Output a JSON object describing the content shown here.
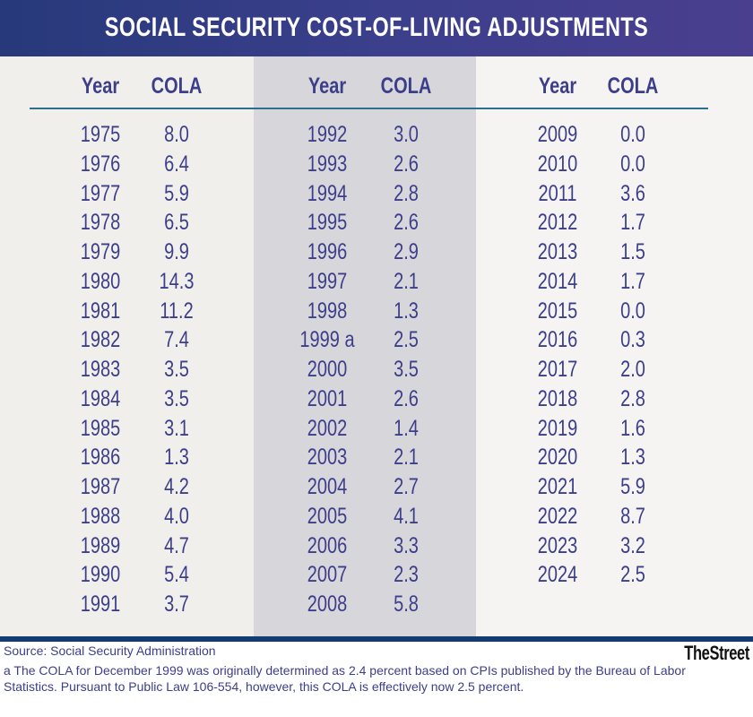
{
  "title": "SOCIAL SECURITY COST-OF-LIVING ADJUSTMENTS",
  "chart_data": {
    "type": "table",
    "title": "SOCIAL SECURITY COST-OF-LIVING ADJUSTMENTS",
    "columns": [
      "Year",
      "COLA"
    ],
    "groups": [
      {
        "rows": [
          [
            "1975",
            "8.0"
          ],
          [
            "1976",
            "6.4"
          ],
          [
            "1977",
            "5.9"
          ],
          [
            "1978",
            "6.5"
          ],
          [
            "1979",
            "9.9"
          ],
          [
            "1980",
            "14.3"
          ],
          [
            "1981",
            "11.2"
          ],
          [
            "1982",
            "7.4"
          ],
          [
            "1983",
            "3.5"
          ],
          [
            "1984",
            "3.5"
          ],
          [
            "1985",
            "3.1"
          ],
          [
            "1986",
            "1.3"
          ],
          [
            "1987",
            "4.2"
          ],
          [
            "1988",
            "4.0"
          ],
          [
            "1989",
            "4.7"
          ],
          [
            "1990",
            "5.4"
          ],
          [
            "1991",
            "3.7"
          ]
        ]
      },
      {
        "rows": [
          [
            "1992",
            "3.0"
          ],
          [
            "1993",
            "2.6"
          ],
          [
            "1994",
            "2.8"
          ],
          [
            "1995",
            "2.6"
          ],
          [
            "1996",
            "2.9"
          ],
          [
            "1997",
            "2.1"
          ],
          [
            "1998",
            "1.3"
          ],
          [
            "1999 a",
            "2.5"
          ],
          [
            "2000",
            "3.5"
          ],
          [
            "2001",
            "2.6"
          ],
          [
            "2002",
            "1.4"
          ],
          [
            "2003",
            "2.1"
          ],
          [
            "2004",
            "2.7"
          ],
          [
            "2005",
            "4.1"
          ],
          [
            "2006",
            "3.3"
          ],
          [
            "2007",
            "2.3"
          ],
          [
            "2008",
            "5.8"
          ]
        ]
      },
      {
        "rows": [
          [
            "2009",
            "0.0"
          ],
          [
            "2010",
            "0.0"
          ],
          [
            "2011",
            "3.6"
          ],
          [
            "2012",
            "1.7"
          ],
          [
            "2013",
            "1.5"
          ],
          [
            "2014",
            "1.7"
          ],
          [
            "2015",
            "0.0"
          ],
          [
            "2016",
            "0.3"
          ],
          [
            "2017",
            "2.0"
          ],
          [
            "2018",
            "2.8"
          ],
          [
            "2019",
            "1.6"
          ],
          [
            "2020",
            "1.3"
          ],
          [
            "2021",
            "5.9"
          ],
          [
            "2022",
            "8.7"
          ],
          [
            "2023",
            "3.2"
          ],
          [
            "2024",
            "2.5"
          ]
        ]
      }
    ]
  },
  "footer": {
    "source": "Source: Social Security Administration",
    "note": "a The COLA for December 1999 was originally determined as 2.4 percent based on CPIs published by the Bureau of Labor Statistics. Pursuant to Public Law 106-554, however, this COLA is effectively now 2.5 percent.",
    "logo": "TheStreet"
  },
  "colors": {
    "banner": "#3b3f8c",
    "text": "#3c3e8a",
    "rule": "#2d6f8e",
    "bottom_bar": "#133c72"
  }
}
